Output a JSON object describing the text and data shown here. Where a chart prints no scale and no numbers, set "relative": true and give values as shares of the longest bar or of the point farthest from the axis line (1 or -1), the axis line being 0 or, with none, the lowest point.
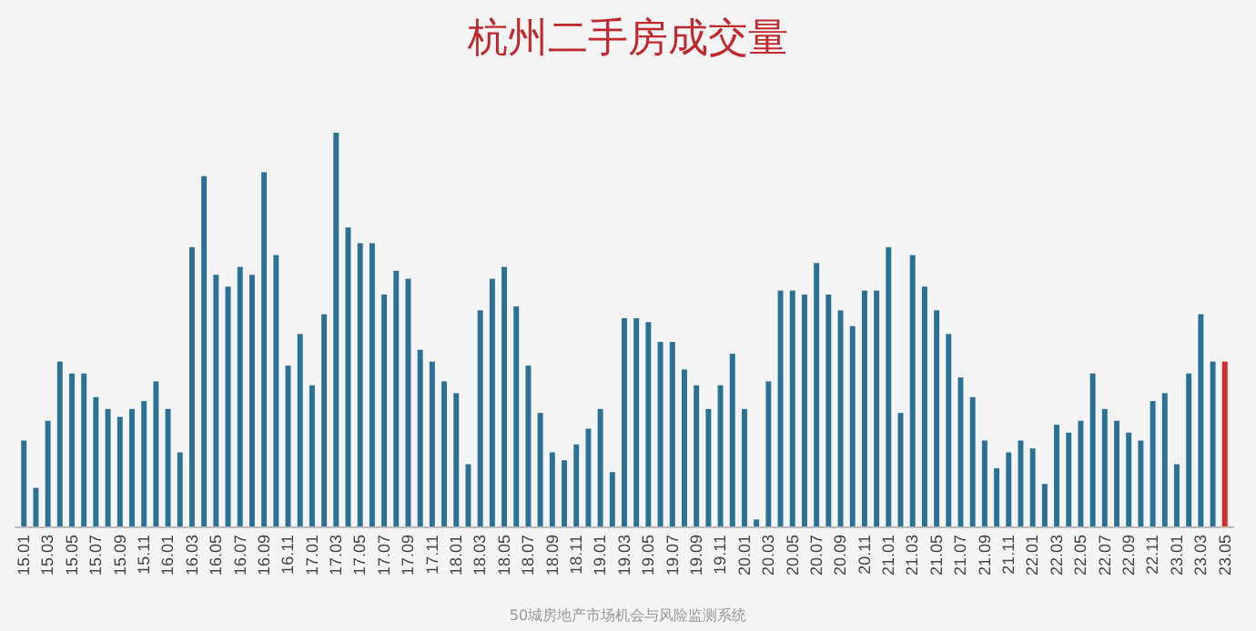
{
  "chart_data": {
    "type": "bar",
    "title": "杭州二手房成交量",
    "relative": true,
    "categories": [
      "15.01",
      null,
      "15.03",
      null,
      "15.05",
      null,
      "15.07",
      null,
      "15.09",
      null,
      "15.11",
      null,
      "16.01",
      null,
      "16.03",
      null,
      "16.05",
      null,
      "16.07",
      null,
      "16.09",
      null,
      "16.11",
      null,
      "17.01",
      null,
      "17.03",
      null,
      "17.05",
      null,
      "17.07",
      null,
      "17.09",
      null,
      "17.11",
      null,
      "18.01",
      null,
      "18.03",
      null,
      "18.05",
      null,
      "18.07",
      null,
      "18.09",
      null,
      "18.11",
      null,
      "19.01",
      null,
      "19.03",
      null,
      "19.05",
      null,
      "19.07",
      null,
      "19.09",
      null,
      "19.11",
      null,
      "20.01",
      null,
      "20.03",
      null,
      "20.05",
      null,
      "20.07",
      null,
      "20.09",
      null,
      "20.11",
      null,
      "21.01",
      null,
      "21.03",
      null,
      "21.05",
      null,
      "21.07",
      null,
      "21.09",
      null,
      "21.11",
      null,
      "22.01",
      null,
      "22.03",
      null,
      "22.05",
      null,
      "22.07",
      null,
      "22.09",
      null,
      "22.11",
      null,
      "23.01",
      null,
      "23.03",
      null,
      "23.05"
    ],
    "values": [
      0.22,
      0.1,
      0.27,
      0.42,
      0.39,
      0.39,
      0.33,
      0.3,
      0.28,
      0.3,
      0.32,
      0.37,
      0.3,
      0.19,
      0.71,
      0.89,
      0.64,
      0.61,
      0.66,
      0.64,
      0.9,
      0.69,
      0.41,
      0.49,
      0.36,
      0.54,
      1,
      0.76,
      0.72,
      0.72,
      0.59,
      0.65,
      0.63,
      0.45,
      0.42,
      0.37,
      0.34,
      0.16,
      0.55,
      0.63,
      0.66,
      0.56,
      0.41,
      0.29,
      0.19,
      0.17,
      0.21,
      0.25,
      0.3,
      0.14,
      0.53,
      0.53,
      0.52,
      0.47,
      0.47,
      0.4,
      0.36,
      0.3,
      0.36,
      0.44,
      0.3,
      0.02,
      0.37,
      0.6,
      0.6,
      0.59,
      0.67,
      0.59,
      0.55,
      0.51,
      0.6,
      0.6,
      0.71,
      0.29,
      0.69,
      0.61,
      0.55,
      0.49,
      0.38,
      0.33,
      0.22,
      0.15,
      0.19,
      0.22,
      0.2,
      0.11,
      0.26,
      0.24,
      0.27,
      0.39,
      0.3,
      0.27,
      0.24,
      0.22,
      0.32,
      0.34,
      0.16,
      0.39,
      0.54,
      0.42,
      0.42
    ],
    "colors": [
      "#2b7196",
      "#2b7196",
      "#2b7196",
      "#2b7196",
      "#2b7196",
      "#2b7196",
      "#2b7196",
      "#2b7196",
      "#2b7196",
      "#2b7196",
      "#2b7196",
      "#2b7196",
      "#2b7196",
      "#2b7196",
      "#2b7196",
      "#2b7196",
      "#2b7196",
      "#2b7196",
      "#2b7196",
      "#2b7196",
      "#2b7196",
      "#2b7196",
      "#2b7196",
      "#2b7196",
      "#2b7196",
      "#2b7196",
      "#2b7196",
      "#2b7196",
      "#2b7196",
      "#2b7196",
      "#2b7196",
      "#2b7196",
      "#2b7196",
      "#2b7196",
      "#2b7196",
      "#2b7196",
      "#2b7196",
      "#2b7196",
      "#2b7196",
      "#2b7196",
      "#2b7196",
      "#2b7196",
      "#2b7196",
      "#2b7196",
      "#2b7196",
      "#2b7196",
      "#2b7196",
      "#2b7196",
      "#2b7196",
      "#2b7196",
      "#2b7196",
      "#2b7196",
      "#2b7196",
      "#2b7196",
      "#2b7196",
      "#2b7196",
      "#2b7196",
      "#2b7196",
      "#2b7196",
      "#2b7196",
      "#2b7196",
      "#2b7196",
      "#2b7196",
      "#2b7196",
      "#2b7196",
      "#2b7196",
      "#2b7196",
      "#2b7196",
      "#2b7196",
      "#2b7196",
      "#2b7196",
      "#2b7196",
      "#2b7196",
      "#2b7196",
      "#2b7196",
      "#2b7196",
      "#2b7196",
      "#2b7196",
      "#2b7196",
      "#2b7196",
      "#2b7196",
      "#2b7196",
      "#2b7196",
      "#2b7196",
      "#2b7196",
      "#2b7196",
      "#2b7196",
      "#2b7196",
      "#2b7196",
      "#2b7196",
      "#2b7196",
      "#2b7196",
      "#2b7196",
      "#2b7196",
      "#2b7196",
      "#2b7196",
      "#2b7196",
      "#2b7196",
      "#2b7196",
      "#2b7196",
      "#d42a2a"
    ],
    "annotations": [
      "50城房地产市场机会与风险监测系统"
    ]
  }
}
